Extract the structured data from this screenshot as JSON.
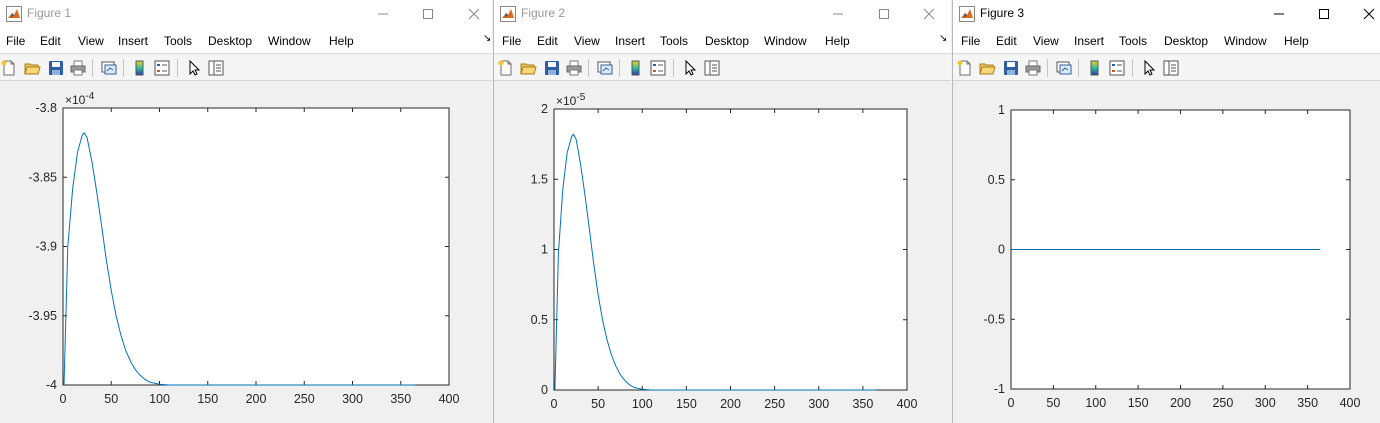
{
  "menu_items": [
    "File",
    "Edit",
    "View",
    "Insert",
    "Tools",
    "Desktop",
    "Window",
    "Help"
  ],
  "colors": {
    "line": "#0072bd",
    "axes_bg": "#ffffff",
    "figure_bg": "#f0f0f0",
    "axis": "#262626"
  },
  "figures": [
    {
      "title": "Figure 1",
      "exponent": {
        "base": "×10",
        "power": "-4"
      },
      "chart_data": {
        "type": "line",
        "title": "",
        "xlabel": "",
        "ylabel": "",
        "xlim": [
          0,
          400
        ],
        "ylim": [
          -4,
          -3.8
        ],
        "xticks": [
          0,
          50,
          100,
          150,
          200,
          250,
          300,
          350,
          400
        ],
        "xtick_labels": [
          "0",
          "50",
          "100",
          "150",
          "200",
          "250",
          "300",
          "350",
          "400"
        ],
        "yticks": [
          -4,
          -3.95,
          -3.9,
          -3.85,
          -3.8
        ],
        "ytick_labels": [
          "-4",
          "-3.95",
          "-3.9",
          "-3.85",
          "-3.8"
        ],
        "grid": false,
        "legend": "none",
        "series": [
          {
            "color": "#0072bd",
            "x": [
              1,
              5,
              10,
              15,
              20,
              22,
              25,
              30,
              35,
              40,
              45,
              50,
              55,
              60,
              65,
              70,
              75,
              80,
              85,
              90,
              100,
              110,
              150,
              200,
              250,
              300,
              365
            ],
            "y": [
              -4.0,
              -3.9,
              -3.858,
              -3.832,
              -3.8195,
              -3.818,
              -3.8215,
              -3.839,
              -3.861,
              -3.885,
              -3.91,
              -3.932,
              -3.95,
              -3.964,
              -3.975,
              -3.983,
              -3.989,
              -3.993,
              -3.996,
              -3.998,
              -3.9995,
              -4.0,
              -4.0,
              -4.0,
              -4.0,
              -4.0,
              -4.0
            ]
          }
        ]
      }
    },
    {
      "title": "Figure 2",
      "exponent": {
        "base": "×10",
        "power": "-5"
      },
      "chart_data": {
        "type": "line",
        "title": "",
        "xlabel": "",
        "ylabel": "",
        "xlim": [
          0,
          400
        ],
        "ylim": [
          0,
          2
        ],
        "xticks": [
          0,
          50,
          100,
          150,
          200,
          250,
          300,
          350,
          400
        ],
        "xtick_labels": [
          "0",
          "50",
          "100",
          "150",
          "200",
          "250",
          "300",
          "350",
          "400"
        ],
        "yticks": [
          0,
          0.5,
          1,
          1.5,
          2
        ],
        "ytick_labels": [
          "0",
          "0.5",
          "1",
          "1.5",
          "2"
        ],
        "grid": false,
        "legend": "none",
        "series": [
          {
            "color": "#0072bd",
            "x": [
              1,
              5,
              10,
              15,
              20,
              22,
              25,
              30,
              35,
              40,
              45,
              50,
              55,
              60,
              65,
              70,
              75,
              80,
              85,
              90,
              100,
              110,
              150,
              200,
              250,
              300,
              365
            ],
            "y": [
              0.0,
              0.97,
              1.43,
              1.69,
              1.805,
              1.82,
              1.785,
              1.61,
              1.39,
              1.15,
              0.9,
              0.68,
              0.5,
              0.36,
              0.25,
              0.17,
              0.11,
              0.07,
              0.04,
              0.02,
              0.005,
              0.0,
              0.0,
              0.0,
              0.0,
              0.0,
              0.0
            ]
          }
        ]
      }
    },
    {
      "title": "Figure 3",
      "exponent": null,
      "chart_data": {
        "type": "line",
        "title": "",
        "xlabel": "",
        "ylabel": "",
        "xlim": [
          0,
          400
        ],
        "ylim": [
          -1,
          1
        ],
        "xticks": [
          0,
          50,
          100,
          150,
          200,
          250,
          300,
          350,
          400
        ],
        "xtick_labels": [
          "0",
          "50",
          "100",
          "150",
          "200",
          "250",
          "300",
          "350",
          "400"
        ],
        "yticks": [
          -1,
          -0.5,
          0,
          0.5,
          1
        ],
        "ytick_labels": [
          "-1",
          "-0.5",
          "0",
          "0.5",
          "1"
        ],
        "grid": false,
        "legend": "none",
        "series": [
          {
            "color": "#0072bd",
            "x": [
              1,
              365
            ],
            "y": [
              0,
              0
            ]
          }
        ]
      }
    }
  ]
}
